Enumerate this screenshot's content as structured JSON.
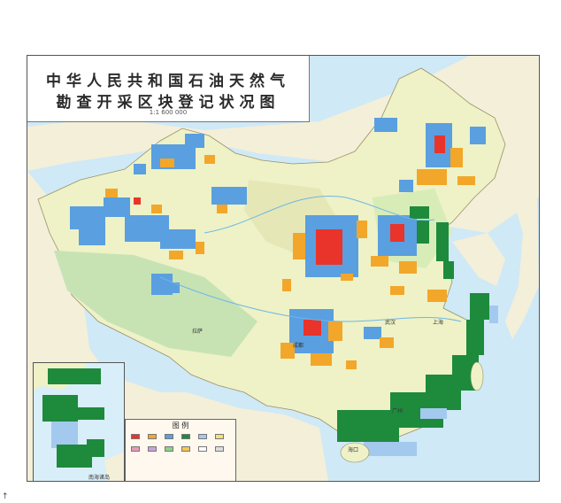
{
  "title": {
    "line1": "中华人民共和国石油天然气",
    "line2": "勘查开采区块登记状况图",
    "scale_note": "1:1 600 000"
  },
  "legend": {
    "title": "图 例",
    "swatch_colors": [
      "#e9342b",
      "#f2a72a",
      "#5a9fe0",
      "#1e8a3c",
      "#a3c9ef",
      "#f2e07a",
      "#e79ab8",
      "#c7a4d8",
      "#8fd08a",
      "#f6c35a",
      "#ffffff",
      "#dddddd"
    ]
  },
  "inset": {
    "label": "南海诸岛"
  },
  "cities": {
    "shanghai": "上海",
    "chengdu": "成都",
    "wuhan": "武汉",
    "guangzhou": "广州",
    "haikou": "海口",
    "tibet_city": "拉萨"
  },
  "colors": {
    "sea": "#cfe9f6",
    "land_base": "#eef2c6",
    "exploration_blue": "#5a9fe0",
    "exploration_orange": "#f2a72a",
    "production_red": "#e9342b",
    "offshore_green": "#1e8a3c"
  },
  "bottom_glyph": "↑"
}
